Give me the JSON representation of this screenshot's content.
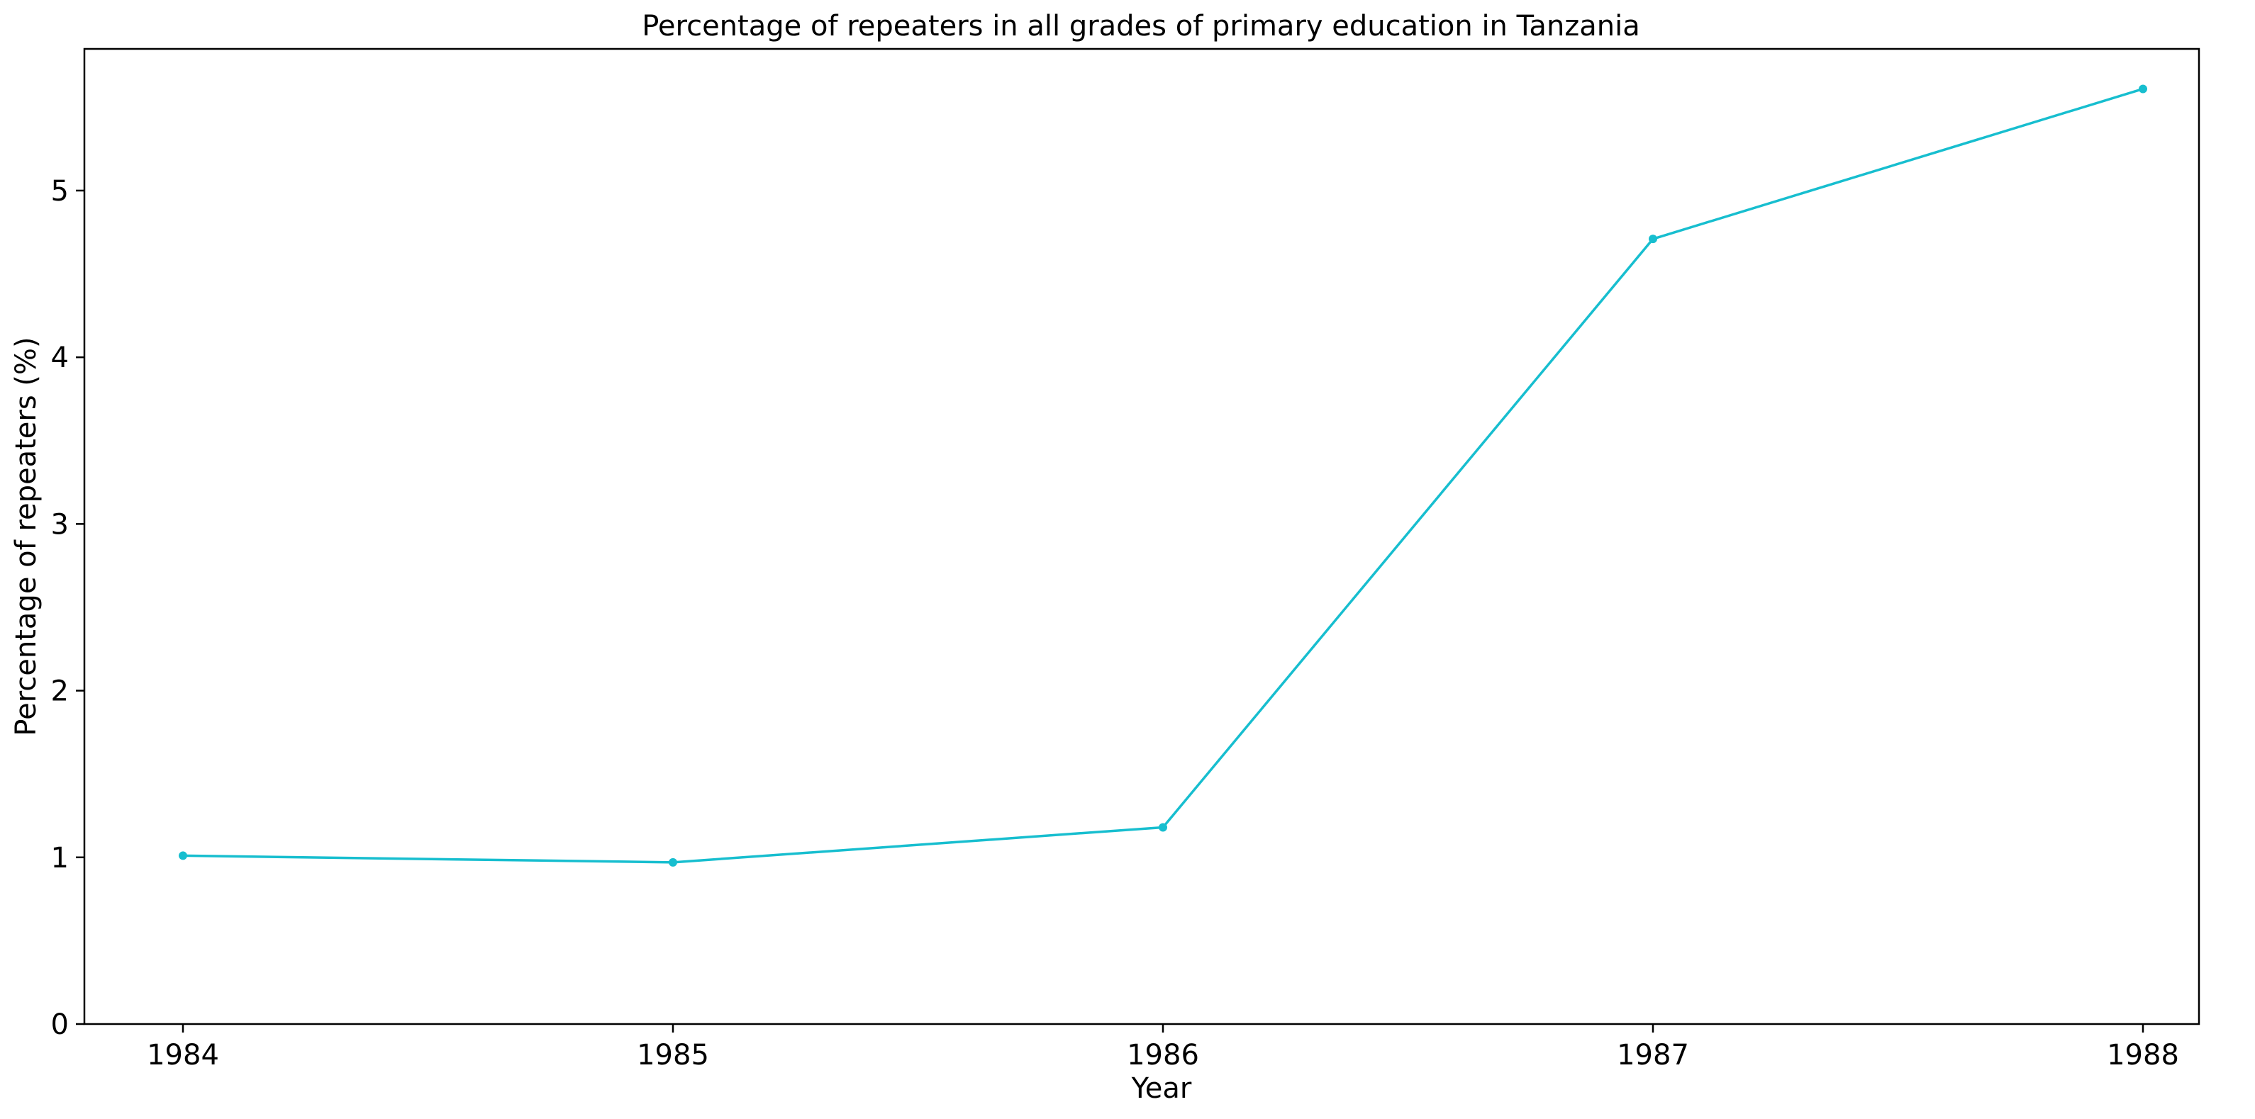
{
  "chart_data": {
    "type": "line",
    "title": "Percentage of repeaters in all grades of primary education in Tanzania",
    "xlabel": "Year",
    "ylabel": "Percentage of repeaters (%)",
    "x": [
      "1984",
      "1985",
      "1986",
      "1987",
      "1988"
    ],
    "series": [
      {
        "values": [
          1.01,
          0.97,
          1.18,
          4.71,
          5.61
        ],
        "color": "#17becf",
        "marker": "dot"
      }
    ],
    "ylim": [
      0,
      5.85
    ],
    "yticks": [
      "0",
      "1",
      "2",
      "3",
      "4",
      "5"
    ],
    "grid": false,
    "legend": "none"
  }
}
